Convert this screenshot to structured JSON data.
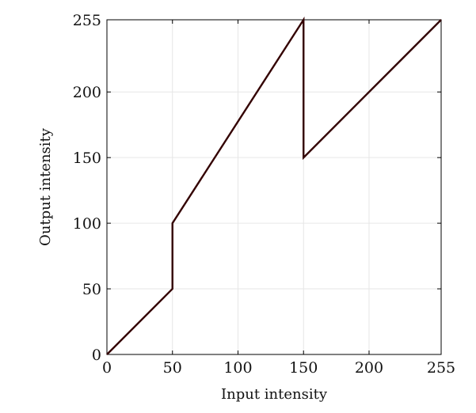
{
  "chart_data": {
    "type": "line",
    "title": "",
    "xlabel": "Input intensity",
    "ylabel": "Output intensity",
    "xlim": [
      0,
      255
    ],
    "ylim": [
      0,
      255
    ],
    "xticks": [
      0,
      50,
      100,
      150,
      200,
      255
    ],
    "yticks": [
      0,
      50,
      100,
      150,
      200,
      255
    ],
    "xtick_labels": [
      "0",
      "50",
      "100",
      "150",
      "200",
      "255"
    ],
    "ytick_labels": [
      "0",
      "50",
      "100",
      "150",
      "200",
      "255"
    ],
    "grid": true,
    "legend": "none",
    "series": [
      {
        "color": "#330000",
        "x": [
          0,
          50,
          50,
          150,
          150,
          255
        ],
        "y": [
          0,
          50,
          100,
          255,
          150,
          255
        ]
      }
    ]
  },
  "colors": {
    "line": "#330000",
    "grid": "#e6e6e6",
    "axis": "#000000"
  }
}
